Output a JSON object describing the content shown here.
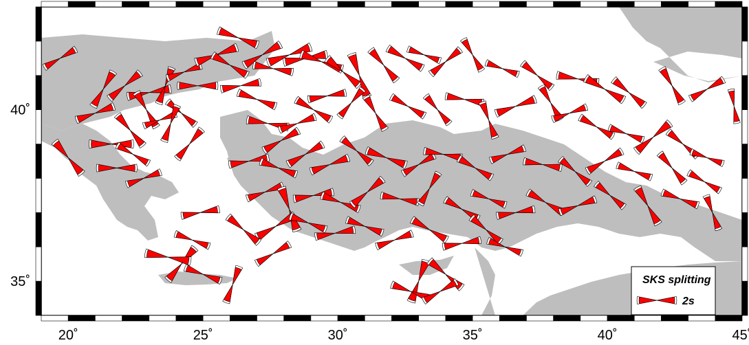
{
  "map": {
    "lon_range": [
      19,
      45
    ],
    "lat_range": [
      34,
      43
    ],
    "land_color": "#bebebe",
    "sea_color": "#ffffff",
    "symbol_fill": "#ff0000",
    "symbol_stroke": "#000000",
    "x_tick_labels": [
      "20˚",
      "25˚",
      "30˚",
      "35˚",
      "40˚",
      "45˚"
    ],
    "x_tick_values": [
      20,
      25,
      30,
      35,
      40,
      45
    ],
    "y_tick_labels": [
      "35˚",
      "40˚"
    ],
    "y_tick_values": [
      35,
      40
    ]
  },
  "legend": {
    "title": "SKS splitting",
    "scale_label": "2s"
  },
  "stations": [
    [
      19.7,
      41.5,
      -30,
      0.7
    ],
    [
      21,
      39.9,
      -20,
      0.9
    ],
    [
      20,
      38.6,
      50,
      1.0
    ],
    [
      21.3,
      40.6,
      -60,
      0.9
    ],
    [
      22.1,
      40.7,
      -40,
      0.9
    ],
    [
      23,
      40.5,
      -10,
      1.1
    ],
    [
      23.6,
      40.7,
      -70,
      0.8
    ],
    [
      22.9,
      40,
      60,
      0.9
    ],
    [
      23.4,
      39.7,
      -20,
      0.6
    ],
    [
      24.2,
      39.9,
      40,
      0.7
    ],
    [
      21.6,
      39,
      0,
      1.1
    ],
    [
      22.3,
      39.4,
      50,
      0.9
    ],
    [
      23.8,
      39.6,
      -70,
      0.8
    ],
    [
      24.5,
      39,
      -50,
      0.8
    ],
    [
      21.8,
      38.3,
      0,
      0.9
    ],
    [
      22.4,
      38.7,
      30,
      0.7
    ],
    [
      22.8,
      38,
      -20,
      0.7
    ],
    [
      24.3,
      41.1,
      -20,
      0.7
    ],
    [
      24.8,
      40.7,
      0,
      0.9
    ],
    [
      25.5,
      41.6,
      -20,
      1.1
    ],
    [
      26,
      41.3,
      30,
      0.9
    ],
    [
      26.3,
      42.1,
      20,
      1.0
    ],
    [
      27.2,
      41.6,
      -30,
      1.0
    ],
    [
      27.6,
      41.2,
      10,
      0.9
    ],
    [
      28.2,
      41.6,
      -20,
      1.2
    ],
    [
      28.8,
      41.5,
      -10,
      1.1
    ],
    [
      29.4,
      41.4,
      20,
      1.1
    ],
    [
      30.2,
      41.1,
      40,
      1.0
    ],
    [
      30.8,
      41,
      70,
      1.2
    ],
    [
      31.7,
      41.3,
      50,
      0.9
    ],
    [
      32.5,
      41.5,
      30,
      0.9
    ],
    [
      33.2,
      41.6,
      20,
      0.6
    ],
    [
      34,
      41.4,
      -40,
      0.8
    ],
    [
      35,
      41.6,
      60,
      0.7
    ],
    [
      36.1,
      41.2,
      20,
      0.6
    ],
    [
      37.4,
      41,
      40,
      0.8
    ],
    [
      38.9,
      40.9,
      10,
      1.0
    ],
    [
      39.9,
      40.6,
      30,
      1.1
    ],
    [
      40.8,
      40.5,
      40,
      0.9
    ],
    [
      42.4,
      40.7,
      60,
      0.9
    ],
    [
      43.7,
      40.6,
      -30,
      0.8
    ],
    [
      44.7,
      40.1,
      80,
      0.6
    ],
    [
      26.4,
      40.7,
      -10,
      0.9
    ],
    [
      27,
      40.3,
      20,
      0.9
    ],
    [
      27.4,
      39.6,
      10,
      1.0
    ],
    [
      27.9,
      39.1,
      -30,
      0.9
    ],
    [
      28.5,
      39.6,
      -20,
      0.8
    ],
    [
      29.1,
      40,
      30,
      0.9
    ],
    [
      29.6,
      40.4,
      -10,
      0.8
    ],
    [
      30.5,
      40.2,
      -50,
      0.7
    ],
    [
      31.4,
      39.9,
      60,
      0.8
    ],
    [
      32.6,
      40.1,
      30,
      0.8
    ],
    [
      33.7,
      40,
      50,
      0.7
    ],
    [
      34.7,
      40.3,
      10,
      0.8
    ],
    [
      35.6,
      39.7,
      70,
      0.8
    ],
    [
      36.6,
      40.1,
      -20,
      1.0
    ],
    [
      37.9,
      40.2,
      60,
      0.8
    ],
    [
      38.6,
      39.9,
      -20,
      0.7
    ],
    [
      39.6,
      39.5,
      30,
      0.8
    ],
    [
      40.7,
      39.3,
      20,
      0.7
    ],
    [
      41.7,
      39.2,
      -40,
      1.1
    ],
    [
      42.8,
      39,
      40,
      0.8
    ],
    [
      43.7,
      38.6,
      20,
      0.6
    ],
    [
      26.7,
      38.5,
      -10,
      0.9
    ],
    [
      27.8,
      38.3,
      20,
      0.8
    ],
    [
      28.8,
      38.7,
      -30,
      0.9
    ],
    [
      29.7,
      38.4,
      -20,
      0.9
    ],
    [
      30.7,
      38.8,
      40,
      0.8
    ],
    [
      31.8,
      38.6,
      20,
      1.0
    ],
    [
      33,
      38.4,
      -30,
      0.7
    ],
    [
      33.9,
      38.7,
      10,
      0.8
    ],
    [
      35.1,
      38.3,
      30,
      0.8
    ],
    [
      36.3,
      38.7,
      -20,
      0.7
    ],
    [
      37.6,
      38.4,
      10,
      0.8
    ],
    [
      38.8,
      38.2,
      40,
      0.8
    ],
    [
      39.9,
      38.5,
      -30,
      0.9
    ],
    [
      41,
      38.2,
      20,
      0.7
    ],
    [
      42.4,
      38.3,
      50,
      0.8
    ],
    [
      43.6,
      37.9,
      30,
      0.7
    ],
    [
      27.3,
      37.6,
      -20,
      0.8
    ],
    [
      28.2,
      37.1,
      70,
      1.2
    ],
    [
      29.1,
      37.5,
      -10,
      0.9
    ],
    [
      30.1,
      37.3,
      20,
      0.9
    ],
    [
      31.1,
      37.6,
      -40,
      0.9
    ],
    [
      32.3,
      37.4,
      10,
      0.8
    ],
    [
      33.4,
      37.7,
      -60,
      0.7
    ],
    [
      34.6,
      37.1,
      30,
      0.8
    ],
    [
      35.6,
      37.4,
      20,
      0.7
    ],
    [
      36.6,
      37,
      -10,
      0.8
    ],
    [
      37.7,
      37.3,
      30,
      0.9
    ],
    [
      38.9,
      37.2,
      -20,
      0.8
    ],
    [
      40.1,
      37.5,
      40,
      0.7
    ],
    [
      41.5,
      37.2,
      60,
      1.0
    ],
    [
      42.7,
      37.4,
      20,
      0.8
    ],
    [
      43.9,
      37,
      70,
      0.7
    ],
    [
      27.7,
      36.6,
      -30,
      1.1
    ],
    [
      28.9,
      36.7,
      20,
      0.8
    ],
    [
      29.9,
      36.4,
      -10,
      0.9
    ],
    [
      31,
      36.6,
      20,
      0.8
    ],
    [
      32.1,
      36.2,
      -20,
      0.8
    ],
    [
      33.4,
      36.5,
      30,
      0.9
    ],
    [
      34.6,
      36.1,
      -10,
      0.8
    ],
    [
      35.5,
      36.5,
      40,
      0.8
    ],
    [
      36.2,
      36,
      20,
      0.7
    ],
    [
      24.9,
      37,
      -10,
      0.8
    ],
    [
      24.6,
      36.2,
      20,
      0.7
    ],
    [
      26.5,
      36.5,
      40,
      0.9
    ],
    [
      27.6,
      35.8,
      -30,
      0.8
    ],
    [
      25,
      35.2,
      20,
      0.8
    ],
    [
      24.2,
      35.5,
      -50,
      1.0
    ],
    [
      26.1,
      34.9,
      -70,
      0.8
    ],
    [
      23.7,
      35.7,
      10,
      1.2
    ],
    [
      33,
      35,
      -70,
      1.1
    ],
    [
      34,
      35.2,
      40,
      1.0
    ],
    [
      32.7,
      34.7,
      20,
      0.9
    ],
    [
      33.8,
      34.7,
      -30,
      0.8
    ]
  ],
  "legend_symbol_magnitude": 2
}
